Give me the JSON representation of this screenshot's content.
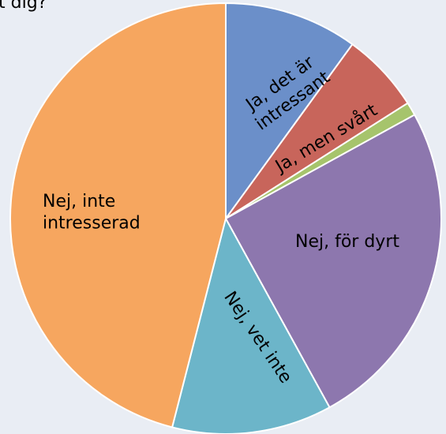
{
  "chart_data": {
    "type": "pie",
    "title": "t dig?",
    "categories": [
      "Ja, det är intressant",
      "Ja, men svårt",
      null,
      "Nej, för dyrt",
      "Nej, vet inte",
      "Nej, inte intresserad"
    ],
    "values": [
      10,
      6,
      1,
      25,
      12,
      46
    ],
    "colors": [
      "#6b8fc9",
      "#c8655b",
      "#a6c46c",
      "#8d77ae",
      "#6cb5c9",
      "#f6a65f"
    ]
  }
}
